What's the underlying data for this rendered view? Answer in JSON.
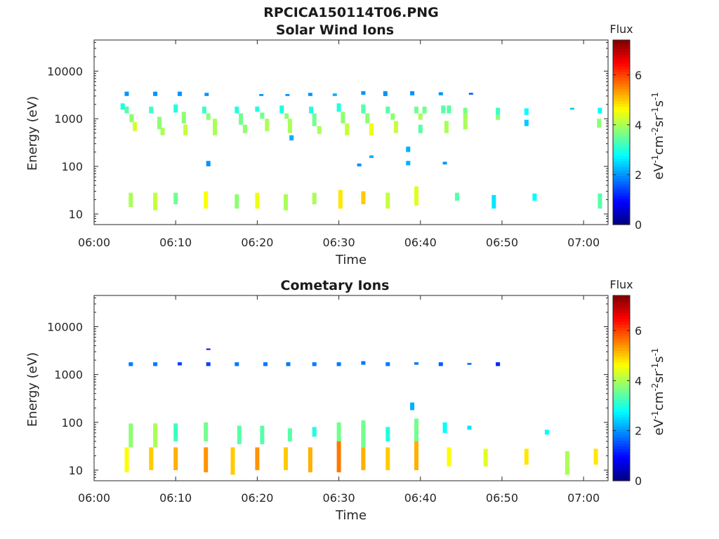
{
  "figure": {
    "title": "RPCICA150114T06.PNG"
  },
  "chart_data": [
    {
      "type": "heatmap",
      "title": "Solar Wind Ions",
      "xlabel": "Time",
      "ylabel": "Energy (eV)",
      "x_ticks": [
        "06:00",
        "06:10",
        "06:20",
        "06:30",
        "06:40",
        "06:50",
        "07:00"
      ],
      "y_ticks": [
        "10",
        "100",
        "1000",
        "10000"
      ],
      "y_scale": "log",
      "xlim": [
        "06:00",
        "07:03"
      ],
      "ylim": [
        6,
        45000
      ],
      "colorbar": {
        "label": "Flux",
        "unit": "eV",
        "ticks": [
          "0",
          "2",
          "4",
          "6"
        ],
        "range": [
          0,
          7.4
        ],
        "colormap": "jet"
      },
      "cells": [
        [
          "06:04.0",
          3000,
          3700,
          2
        ],
        [
          "06:03.5",
          1550,
          2100,
          3
        ],
        [
          "06:04.0",
          1300,
          1800,
          3.4
        ],
        [
          "06:04.6",
          850,
          1250,
          3.8
        ],
        [
          "06:05.0",
          550,
          850,
          4.3
        ],
        [
          "06:07.5",
          3000,
          3700,
          2
        ],
        [
          "06:07.0",
          1300,
          1800,
          3.2
        ],
        [
          "06:08.0",
          600,
          1100,
          3.8
        ],
        [
          "06:08.4",
          450,
          650,
          4
        ],
        [
          "06:10.5",
          3000,
          3700,
          2
        ],
        [
          "06:10.0",
          1350,
          2000,
          3
        ],
        [
          "06:11.0",
          800,
          1400,
          3.8
        ],
        [
          "06:11.2",
          450,
          750,
          4.2
        ],
        [
          "06:13.8",
          3000,
          3500,
          2
        ],
        [
          "06:13.5",
          1300,
          1800,
          3.2
        ],
        [
          "06:14.0",
          950,
          1300,
          3.8
        ],
        [
          "06:14.8",
          450,
          1000,
          4
        ],
        [
          "06:17.5",
          1300,
          1800,
          3
        ],
        [
          "06:18.0",
          750,
          1300,
          3.6
        ],
        [
          "06:18.5",
          500,
          750,
          3.8
        ],
        [
          "06:20.5",
          3000,
          3300,
          2
        ],
        [
          "06:20.0",
          1400,
          1800,
          3
        ],
        [
          "06:20.6",
          1000,
          1350,
          3.6
        ],
        [
          "06:21.2",
          550,
          1000,
          4
        ],
        [
          "06:23.0",
          1300,
          1900,
          3
        ],
        [
          "06:23.6",
          1000,
          1300,
          3.8
        ],
        [
          "06:24.0",
          500,
          1000,
          4
        ],
        [
          "06:24.2",
          350,
          450,
          2.2
        ],
        [
          "06:23.7",
          3000,
          3300,
          2
        ],
        [
          "06:26.5",
          3000,
          3500,
          2
        ],
        [
          "06:26.6",
          1300,
          1800,
          3
        ],
        [
          "06:27.0",
          700,
          1300,
          3.6
        ],
        [
          "06:27.6",
          480,
          700,
          4
        ],
        [
          "06:29.5",
          3000,
          3400,
          2.2
        ],
        [
          "06:30.0",
          1400,
          2100,
          3
        ],
        [
          "06:30.5",
          800,
          1400,
          3.8
        ],
        [
          "06:31.0",
          450,
          800,
          4.2
        ],
        [
          "06:33.0",
          3200,
          3800,
          2
        ],
        [
          "06:33.0",
          1300,
          2000,
          3.4
        ],
        [
          "06:33.5",
          800,
          1300,
          3.8
        ],
        [
          "06:34.0",
          450,
          800,
          4.5
        ],
        [
          "06:35.7",
          3000,
          3800,
          2
        ],
        [
          "06:36.0",
          1300,
          1800,
          3.4
        ],
        [
          "06:36.6",
          950,
          1300,
          3.8
        ],
        [
          "06:37.0",
          500,
          900,
          4.2
        ],
        [
          "06:39.0",
          3100,
          3800,
          2
        ],
        [
          "06:39.5",
          1300,
          1800,
          3.6
        ],
        [
          "06:40.5",
          1300,
          1800,
          3.6
        ],
        [
          "06:40.0",
          950,
          1300,
          4
        ],
        [
          "06:40.0",
          500,
          750,
          3.4
        ],
        [
          "06:42.5",
          3100,
          3600,
          2
        ],
        [
          "06:43.5",
          1300,
          1900,
          3.4
        ],
        [
          "06:42.8",
          1300,
          1900,
          3.4
        ],
        [
          "06:43.2",
          500,
          900,
          4
        ],
        [
          "06:46.2",
          3200,
          3500,
          1.6
        ],
        [
          "06:45.5",
          1300,
          1700,
          3.6
        ],
        [
          "06:45.5",
          600,
          1300,
          4
        ],
        [
          "06:49.5",
          1200,
          1700,
          3.2
        ],
        [
          "06:49.5",
          950,
          1200,
          3.8
        ],
        [
          "06:53.0",
          1200,
          1650,
          2.8
        ],
        [
          "06:53.0",
          700,
          950,
          2.4
        ],
        [
          "06:58.6",
          1550,
          1700,
          2.4
        ],
        [
          "07:02.0",
          1300,
          1700,
          2.8
        ],
        [
          "07:01.9",
          650,
          1000,
          3.8
        ],
        [
          "06:38.5",
          200,
          260,
          2.2
        ],
        [
          "06:38.5",
          105,
          130,
          2.2
        ],
        [
          "06:14.0",
          100,
          130,
          2
        ],
        [
          "06:43.0",
          110,
          125,
          2
        ],
        [
          "06:32.5",
          100,
          115,
          2
        ],
        [
          "06:34.0",
          150,
          170,
          2.2
        ],
        [
          "06:04.5",
          14,
          28,
          4
        ],
        [
          "06:07.5",
          12,
          28,
          4.2
        ],
        [
          "06:10.0",
          16,
          28,
          3.6
        ],
        [
          "06:13.7",
          13,
          30,
          4.6
        ],
        [
          "06:17.5",
          13,
          26,
          3.8
        ],
        [
          "06:20.0",
          13,
          28,
          4.5
        ],
        [
          "06:23.5",
          12,
          26,
          4
        ],
        [
          "06:27.0",
          16,
          28,
          4
        ],
        [
          "06:30.2",
          13,
          32,
          4.8
        ],
        [
          "06:33.0",
          16,
          30,
          5
        ],
        [
          "06:36.0",
          13,
          28,
          4.2
        ],
        [
          "06:39.5",
          15,
          38,
          4.4
        ],
        [
          "06:44.5",
          19,
          28,
          3.4
        ],
        [
          "06:49.0",
          13,
          25,
          2.6
        ],
        [
          "06:54.0",
          19,
          27,
          2.8
        ],
        [
          "07:02.0",
          13,
          27,
          3.4
        ]
      ]
    },
    {
      "type": "heatmap",
      "title": "Cometary Ions",
      "xlabel": "Time",
      "ylabel": "Energy (eV)",
      "x_ticks": [
        "06:00",
        "06:10",
        "06:20",
        "06:30",
        "06:40",
        "06:50",
        "07:00"
      ],
      "y_ticks": [
        "10",
        "100",
        "1000",
        "10000"
      ],
      "y_scale": "log",
      "xlim": [
        "06:00",
        "07:03"
      ],
      "ylim": [
        6,
        45000
      ],
      "colorbar": {
        "label": "Flux",
        "unit": "eV",
        "ticks": [
          "0",
          "2",
          "4",
          "6"
        ],
        "range": [
          0,
          7.4
        ],
        "colormap": "jet"
      },
      "cells": [
        [
          "06:04.5",
          1500,
          1800,
          1.8
        ],
        [
          "06:07.5",
          1500,
          1800,
          1.8
        ],
        [
          "06:10.5",
          1550,
          1800,
          1.4
        ],
        [
          "06:14.0",
          1500,
          1800,
          1.4
        ],
        [
          "06:14.0",
          3300,
          3500,
          1
        ],
        [
          "06:17.5",
          1500,
          1800,
          1.8
        ],
        [
          "06:21.0",
          1500,
          1800,
          1.8
        ],
        [
          "06:23.8",
          1500,
          1800,
          1.8
        ],
        [
          "06:27.0",
          1500,
          1800,
          1.8
        ],
        [
          "06:30.0",
          1500,
          1800,
          1.8
        ],
        [
          "06:33.0",
          1600,
          1900,
          1.8
        ],
        [
          "06:36.0",
          1500,
          1800,
          1.8
        ],
        [
          "06:39.5",
          1600,
          1800,
          1.8
        ],
        [
          "06:42.5",
          1500,
          1800,
          1.6
        ],
        [
          "06:46.0",
          1600,
          1750,
          1.8
        ],
        [
          "06:49.5",
          1500,
          1800,
          1.2
        ],
        [
          "06:04.5",
          30,
          95,
          3.8
        ],
        [
          "06:07.5",
          30,
          95,
          4
        ],
        [
          "06:10.0",
          40,
          95,
          3.2
        ],
        [
          "06:13.7",
          40,
          100,
          3.6
        ],
        [
          "06:17.8",
          35,
          85,
          3.4
        ],
        [
          "06:20.6",
          35,
          85,
          3.4
        ],
        [
          "06:24.0",
          40,
          75,
          3.4
        ],
        [
          "06:27.0",
          50,
          80,
          3
        ],
        [
          "06:30.0",
          30,
          100,
          3.6
        ],
        [
          "06:33.0",
          30,
          110,
          3.6
        ],
        [
          "06:36.0",
          40,
          80,
          3
        ],
        [
          "06:39.5",
          35,
          120,
          3.6
        ],
        [
          "06:39.0",
          180,
          260,
          2.2
        ],
        [
          "06:43.0",
          60,
          100,
          2.8
        ],
        [
          "06:46.0",
          70,
          85,
          2.6
        ],
        [
          "06:55.5",
          55,
          70,
          2.8
        ],
        [
          "06:04.0",
          9,
          30,
          4.6
        ],
        [
          "06:07.0",
          10,
          30,
          5
        ],
        [
          "06:10.0",
          10,
          30,
          5.2
        ],
        [
          "06:13.7",
          9,
          30,
          5.4
        ],
        [
          "06:17.0",
          8,
          30,
          5
        ],
        [
          "06:20.0",
          10,
          30,
          5.4
        ],
        [
          "06:23.5",
          10,
          30,
          5
        ],
        [
          "06:26.5",
          9,
          30,
          5.2
        ],
        [
          "06:30.0",
          9,
          40,
          5.6
        ],
        [
          "06:33.0",
          10,
          30,
          5.2
        ],
        [
          "06:36.0",
          10,
          30,
          5
        ],
        [
          "06:39.5",
          10,
          40,
          5.2
        ],
        [
          "06:43.5",
          12,
          30,
          4.6
        ],
        [
          "06:48.0",
          12,
          28,
          4.4
        ],
        [
          "06:53.0",
          13,
          28,
          4.8
        ],
        [
          "06:58.0",
          8,
          25,
          4
        ],
        [
          "07:01.5",
          13,
          28,
          4.8
        ]
      ]
    }
  ]
}
